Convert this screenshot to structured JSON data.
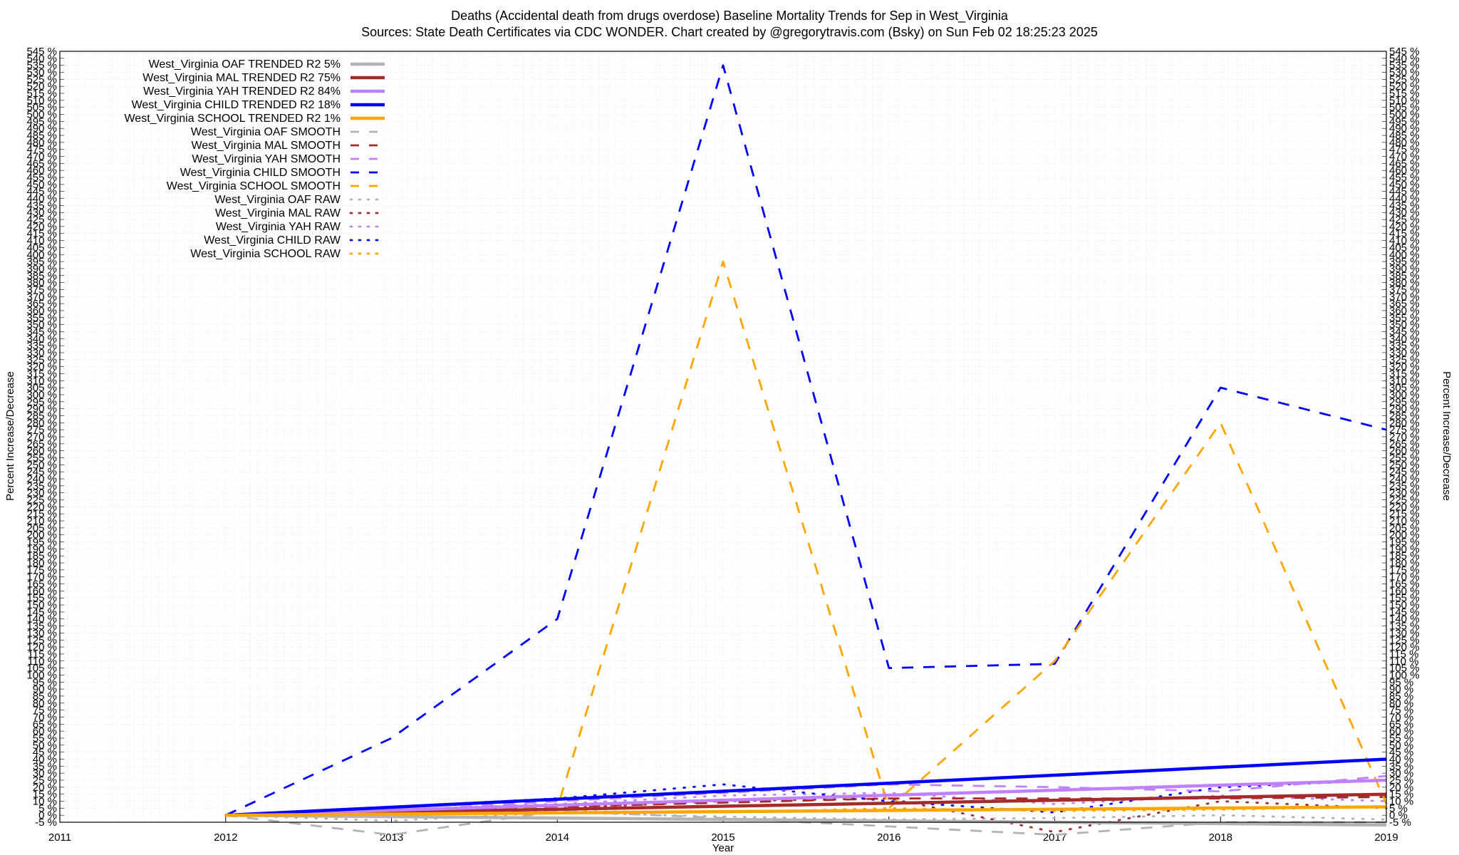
{
  "chart_data": {
    "type": "line",
    "title_line1": "Deaths (Accidental death from drugs overdose)  Baseline Mortality Trends for Sep in West_Virginia",
    "title_line2": "Sources: State Death Certificates via CDC WONDER.              Chart created by @gregorytravis.com (Bsky) on Sun Feb 02 18:25:23 2025",
    "xlabel": "Year",
    "ylabel": "Percent Increase/Decrease",
    "xlim": [
      2011,
      2019
    ],
    "ylim": [
      -5,
      545
    ],
    "x_ticks": [
      "2011",
      "2012",
      "2013",
      "2014",
      "2015",
      "2016",
      "2017",
      "2018",
      "2019"
    ],
    "y_tick_step": 5,
    "grid": true,
    "legend_position": "top-left",
    "series": [
      {
        "name": "West_Virginia OAF TRENDED R2  5%",
        "style": "trend",
        "color": "#b3b3b3",
        "x": [
          2012,
          2019
        ],
        "y": [
          0,
          -7
        ]
      },
      {
        "name": "West_Virginia MAL TRENDED R2  75%",
        "style": "trend",
        "color": "#a52a2a",
        "x": [
          2012,
          2019
        ],
        "y": [
          0,
          15
        ]
      },
      {
        "name": "West_Virginia YAH TRENDED R2  84%",
        "style": "trend",
        "color": "#c080ff",
        "x": [
          2012,
          2019
        ],
        "y": [
          0,
          25
        ]
      },
      {
        "name": "West_Virginia CHILD TRENDED R2  18%",
        "style": "trend",
        "color": "#0000ff",
        "x": [
          2012,
          2019
        ],
        "y": [
          0,
          40
        ]
      },
      {
        "name": "West_Virginia SCHOOL TRENDED R2  1%",
        "style": "trend",
        "color": "#ffa500",
        "x": [
          2012,
          2019
        ],
        "y": [
          0,
          6
        ]
      },
      {
        "name": "West_Virginia OAF SMOOTH",
        "style": "smooth",
        "color": "#b3b3b3",
        "x": [
          2012,
          2013,
          2014,
          2015,
          2016,
          2017,
          2018,
          2019
        ],
        "y": [
          0,
          -14,
          3,
          -2,
          -8,
          -14,
          -5,
          -5
        ]
      },
      {
        "name": "West_Virginia MAL SMOOTH",
        "style": "smooth",
        "color": "#a52a2a",
        "x": [
          2012,
          2013,
          2014,
          2015,
          2016,
          2017,
          2018,
          2019
        ],
        "y": [
          0,
          2,
          6,
          9,
          12,
          12,
          12,
          13
        ]
      },
      {
        "name": "West_Virginia YAH SMOOTH",
        "style": "smooth",
        "color": "#c080ff",
        "x": [
          2012,
          2013,
          2014,
          2015,
          2016,
          2017,
          2018,
          2019
        ],
        "y": [
          0,
          3,
          10,
          16,
          22,
          20,
          17,
          28
        ]
      },
      {
        "name": "West_Virginia CHILD SMOOTH",
        "style": "smooth",
        "color": "#0000ff",
        "x": [
          2012,
          2013,
          2014,
          2015,
          2016,
          2017,
          2018,
          2019
        ],
        "y": [
          0,
          55,
          140,
          535,
          105,
          108,
          305,
          275
        ]
      },
      {
        "name": "West_Virginia SCHOOL SMOOTH",
        "style": "smooth",
        "color": "#ffa500",
        "x": [
          2012,
          2013,
          2014,
          2015,
          2016,
          2017,
          2018,
          2019
        ],
        "y": [
          0,
          2,
          5,
          395,
          5,
          110,
          280,
          8
        ]
      },
      {
        "name": "West_Virginia OAF RAW",
        "style": "raw",
        "color": "#b3b3b3",
        "x": [
          2012,
          2013,
          2014,
          2015,
          2016,
          2017,
          2018,
          2019
        ],
        "y": [
          0,
          -4,
          2,
          -1,
          -3,
          -2,
          0,
          -3
        ]
      },
      {
        "name": "West_Virginia MAL RAW",
        "style": "raw",
        "color": "#a52a2a",
        "x": [
          2012,
          2013,
          2014,
          2015,
          2016,
          2017,
          2018,
          2019
        ],
        "y": [
          0,
          3,
          5,
          10,
          12,
          -12,
          10,
          5
        ]
      },
      {
        "name": "West_Virginia YAH RAW",
        "style": "raw",
        "color": "#c080ff",
        "x": [
          2012,
          2013,
          2014,
          2015,
          2016,
          2017,
          2018,
          2019
        ],
        "y": [
          0,
          4,
          8,
          14,
          16,
          8,
          14,
          10
        ]
      },
      {
        "name": "West_Virginia CHILD RAW",
        "style": "raw",
        "color": "#0000ff",
        "x": [
          2012,
          2013,
          2014,
          2015,
          2016,
          2017,
          2018,
          2019
        ],
        "y": [
          0,
          6,
          12,
          22,
          10,
          2,
          20,
          25
        ]
      },
      {
        "name": "West_Virginia SCHOOL RAW",
        "style": "raw",
        "color": "#ffa500",
        "x": [
          2012,
          2013,
          2014,
          2015,
          2016,
          2017,
          2018,
          2019
        ],
        "y": [
          0,
          1,
          3,
          2,
          5,
          3,
          4,
          6
        ]
      }
    ]
  }
}
